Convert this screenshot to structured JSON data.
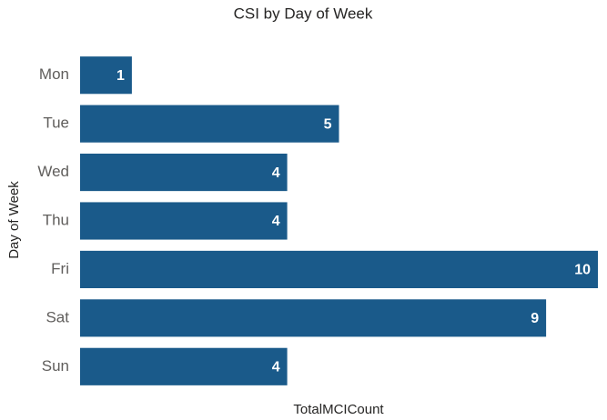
{
  "chart_data": {
    "type": "bar",
    "orientation": "horizontal",
    "title": "CSI by Day of Week",
    "categories": [
      "Mon",
      "Tue",
      "Wed",
      "Thu",
      "Fri",
      "Sat",
      "Sun"
    ],
    "values": [
      1,
      5,
      4,
      4,
      10,
      9,
      4
    ],
    "color": "#1a5a8a",
    "xlabel": "TotalMCICount",
    "ylabel": "Day of Week",
    "xlim": [
      0,
      10
    ]
  }
}
